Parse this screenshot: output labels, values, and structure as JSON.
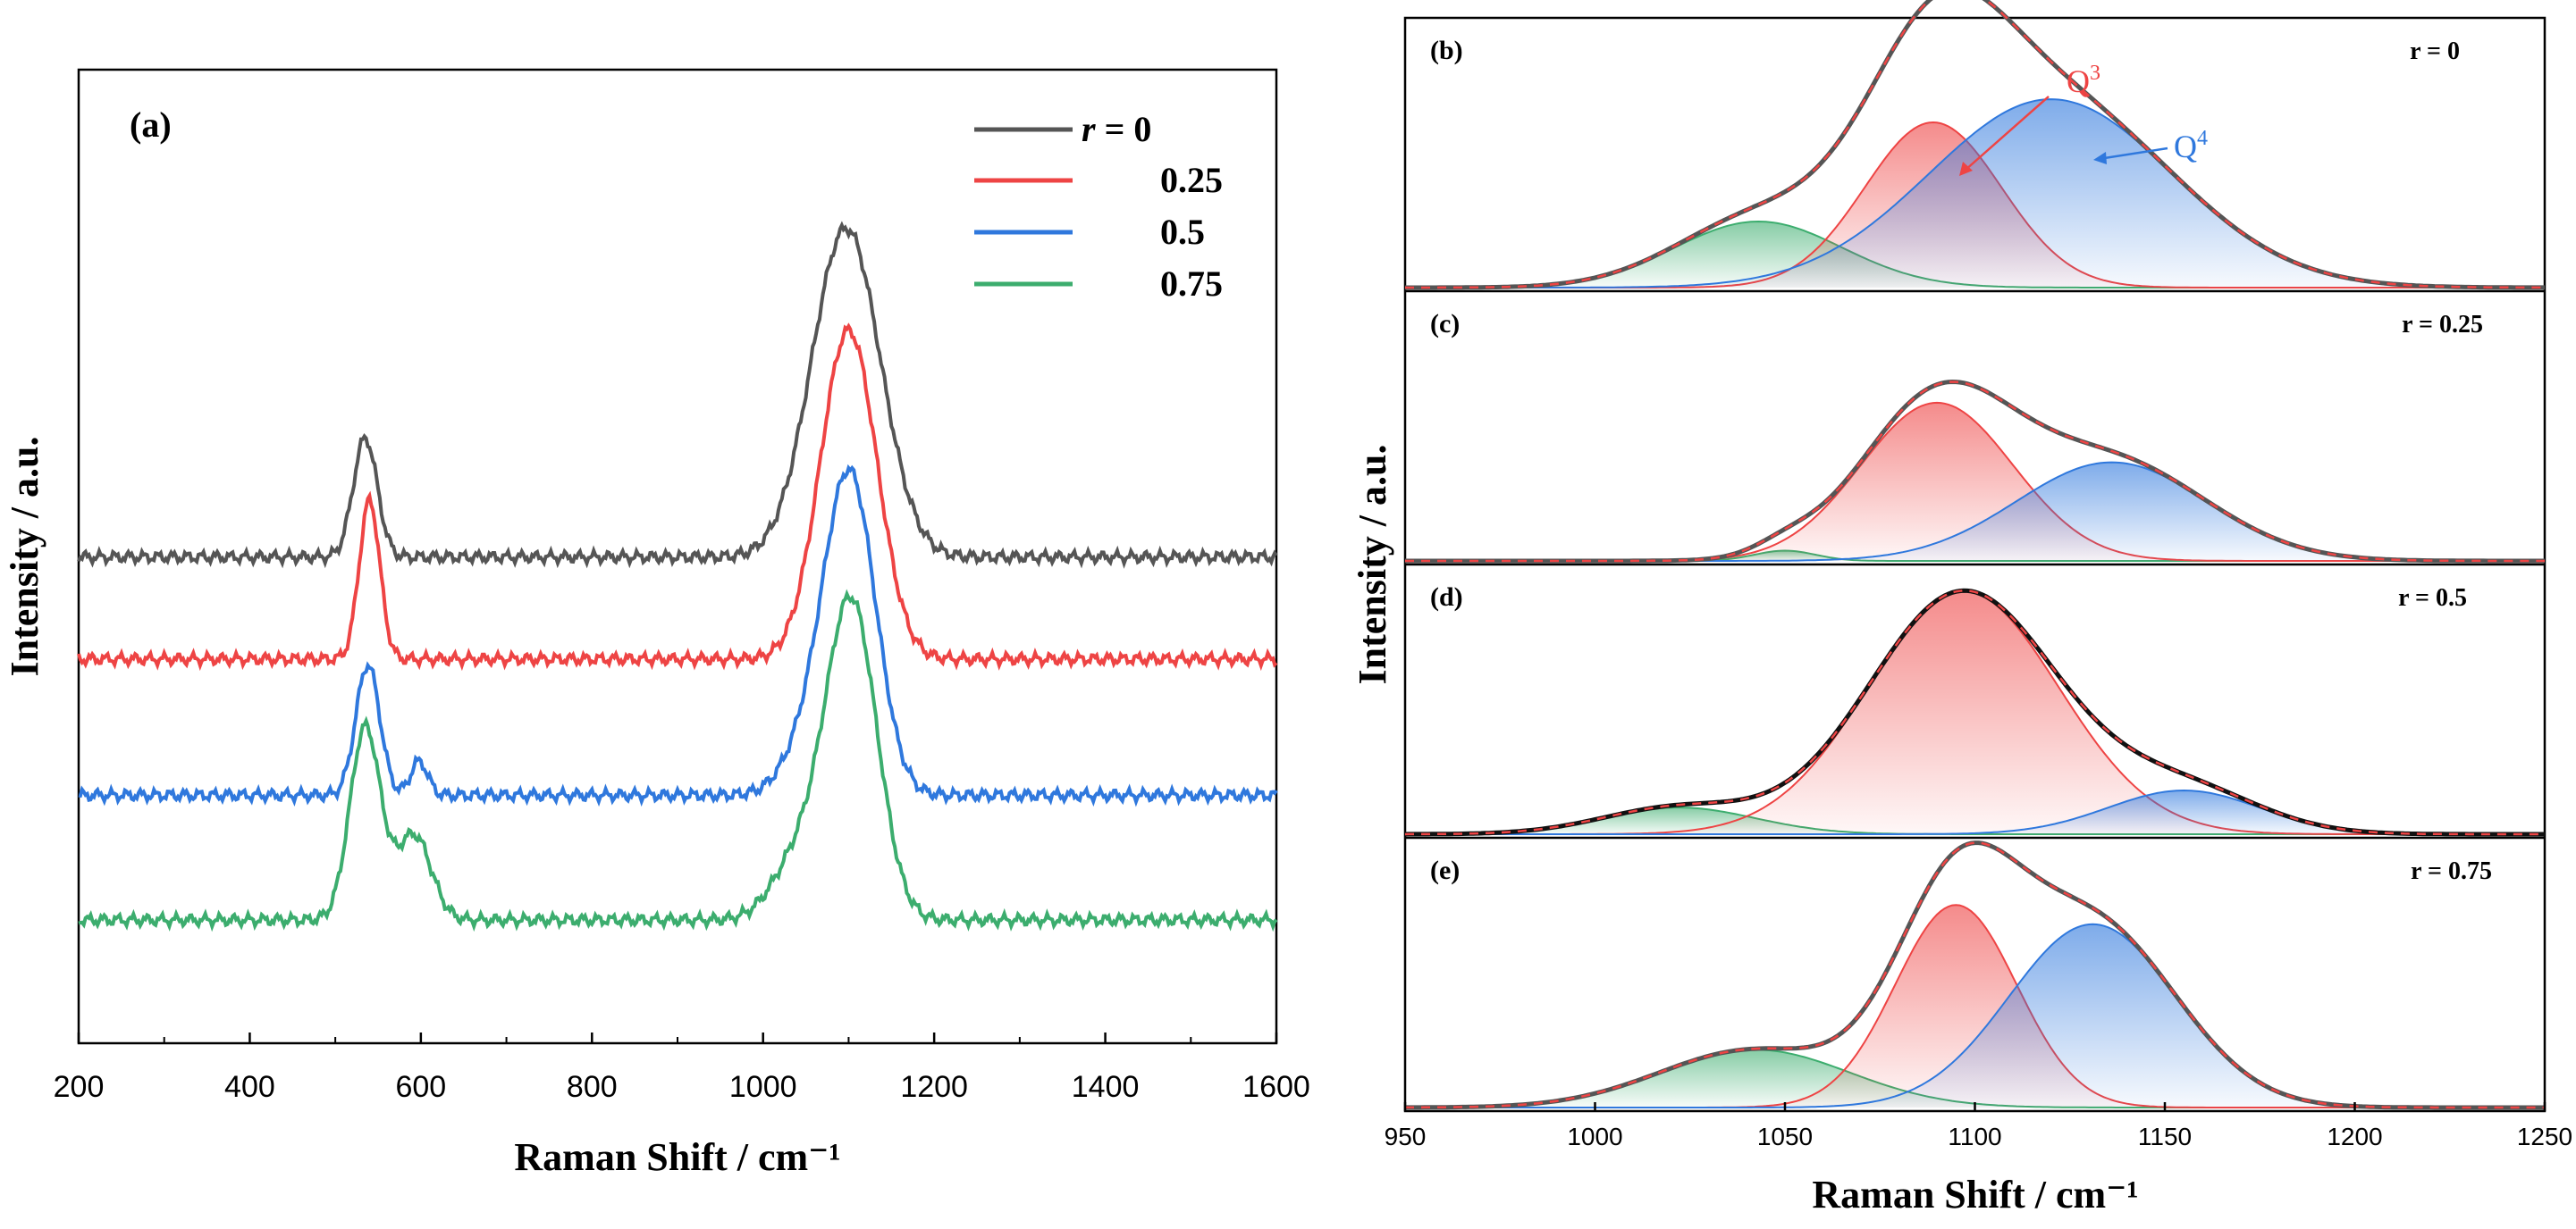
{
  "chart_data": [
    {
      "panel": "(a)",
      "type": "line",
      "title": "",
      "xlabel": "Raman Shift / cm⁻¹",
      "ylabel": "Intensity / a.u.",
      "xlim": [
        200,
        1600
      ],
      "xticks": [
        200,
        400,
        600,
        800,
        1000,
        1200,
        1400,
        1600
      ],
      "yticks": [],
      "legend_title_prefix": "r = ",
      "legend": [
        {
          "label": "0",
          "color": "#555555"
        },
        {
          "label": "0.25",
          "color": "#ee4444"
        },
        {
          "label": "0.5",
          "color": "#2f78dd"
        },
        {
          "label": "0.75",
          "color": "#3cad6e"
        }
      ],
      "series": [
        {
          "name": "r = 0",
          "color": "#555555",
          "offset": 3.2,
          "peaks": [
            {
              "center": 535,
              "height": 1.05,
              "width": 14
            },
            {
              "center": 1097,
              "height": 2.9,
              "width": 40
            }
          ]
        },
        {
          "name": "r = 0.25",
          "color": "#ee4444",
          "offset": 2.3,
          "peaks": [
            {
              "center": 540,
              "height": 1.4,
              "width": 12
            },
            {
              "center": 1100,
              "height": 2.9,
              "width": 33
            }
          ]
        },
        {
          "name": "r = 0.5",
          "color": "#2f78dd",
          "offset": 1.1,
          "peaks": [
            {
              "center": 538,
              "height": 1.15,
              "width": 14
            },
            {
              "center": 598,
              "height": 0.3,
              "width": 10
            },
            {
              "center": 1055,
              "height": 0.4,
              "width": 30
            },
            {
              "center": 1102,
              "height": 2.75,
              "width": 30
            }
          ]
        },
        {
          "name": "r = 0.75",
          "color": "#3cad6e",
          "offset": 0.0,
          "peaks": [
            {
              "center": 535,
              "height": 1.7,
              "width": 18
            },
            {
              "center": 592,
              "height": 0.75,
              "width": 20
            },
            {
              "center": 1040,
              "height": 0.5,
              "width": 30
            },
            {
              "center": 1103,
              "height": 2.8,
              "width": 30
            }
          ]
        }
      ]
    },
    {
      "panel": "(b)",
      "type": "area",
      "r_label": "r = 0",
      "annotations": [
        {
          "text": "Q",
          "sup": "3",
          "color": "#ee4444"
        },
        {
          "text": "Q",
          "sup": "4",
          "color": "#2f78dd"
        }
      ],
      "components": [
        {
          "name": "green",
          "color": "#3cad6e",
          "center": 1043,
          "height": 0.2,
          "width": 22
        },
        {
          "name": "Q3",
          "color": "#ee4444",
          "center": 1089,
          "height": 0.5,
          "width": 18
        },
        {
          "name": "Q4",
          "color": "#2f78dd",
          "center": 1120,
          "height": 0.57,
          "width": 32
        }
      ]
    },
    {
      "panel": "(c)",
      "type": "area",
      "r_label": "r = 0.25",
      "components": [
        {
          "name": "green",
          "color": "#3cad6e",
          "center": 1050,
          "height": 0.05,
          "width": 8
        },
        {
          "name": "Q3",
          "color": "#ee4444",
          "center": 1090,
          "height": 0.77,
          "width": 20
        },
        {
          "name": "Q4",
          "color": "#2f78dd",
          "center": 1136,
          "height": 0.48,
          "width": 25
        }
      ]
    },
    {
      "panel": "(d)",
      "type": "area",
      "r_label": "r = 0.5",
      "components": [
        {
          "name": "green",
          "color": "#3cad6e",
          "center": 1022,
          "height": 0.11,
          "width": 20
        },
        {
          "name": "Q3",
          "color": "#ee4444",
          "center": 1097,
          "height": 1.0,
          "width": 25
        },
        {
          "name": "Q4",
          "color": "#2f78dd",
          "center": 1155,
          "height": 0.18,
          "width": 20
        }
      ]
    },
    {
      "panel": "(e)",
      "type": "area",
      "r_label": "r = 0.75",
      "components": [
        {
          "name": "green",
          "color": "#3cad6e",
          "center": 1042,
          "height": 0.18,
          "width": 25
        },
        {
          "name": "Q3",
          "color": "#ee4444",
          "center": 1095,
          "height": 0.63,
          "width": 16
        },
        {
          "name": "Q4",
          "color": "#2f78dd",
          "center": 1131,
          "height": 0.57,
          "width": 22
        }
      ]
    },
    {
      "panel": "(b)-(e) shared axes",
      "type": "axes",
      "xlabel": "Raman Shift / cm⁻¹",
      "ylabel": "Intensity / a.u.",
      "xlim": [
        950,
        1250
      ],
      "xticks": [
        950,
        1000,
        1050,
        1100,
        1150,
        1200,
        1250
      ]
    }
  ]
}
